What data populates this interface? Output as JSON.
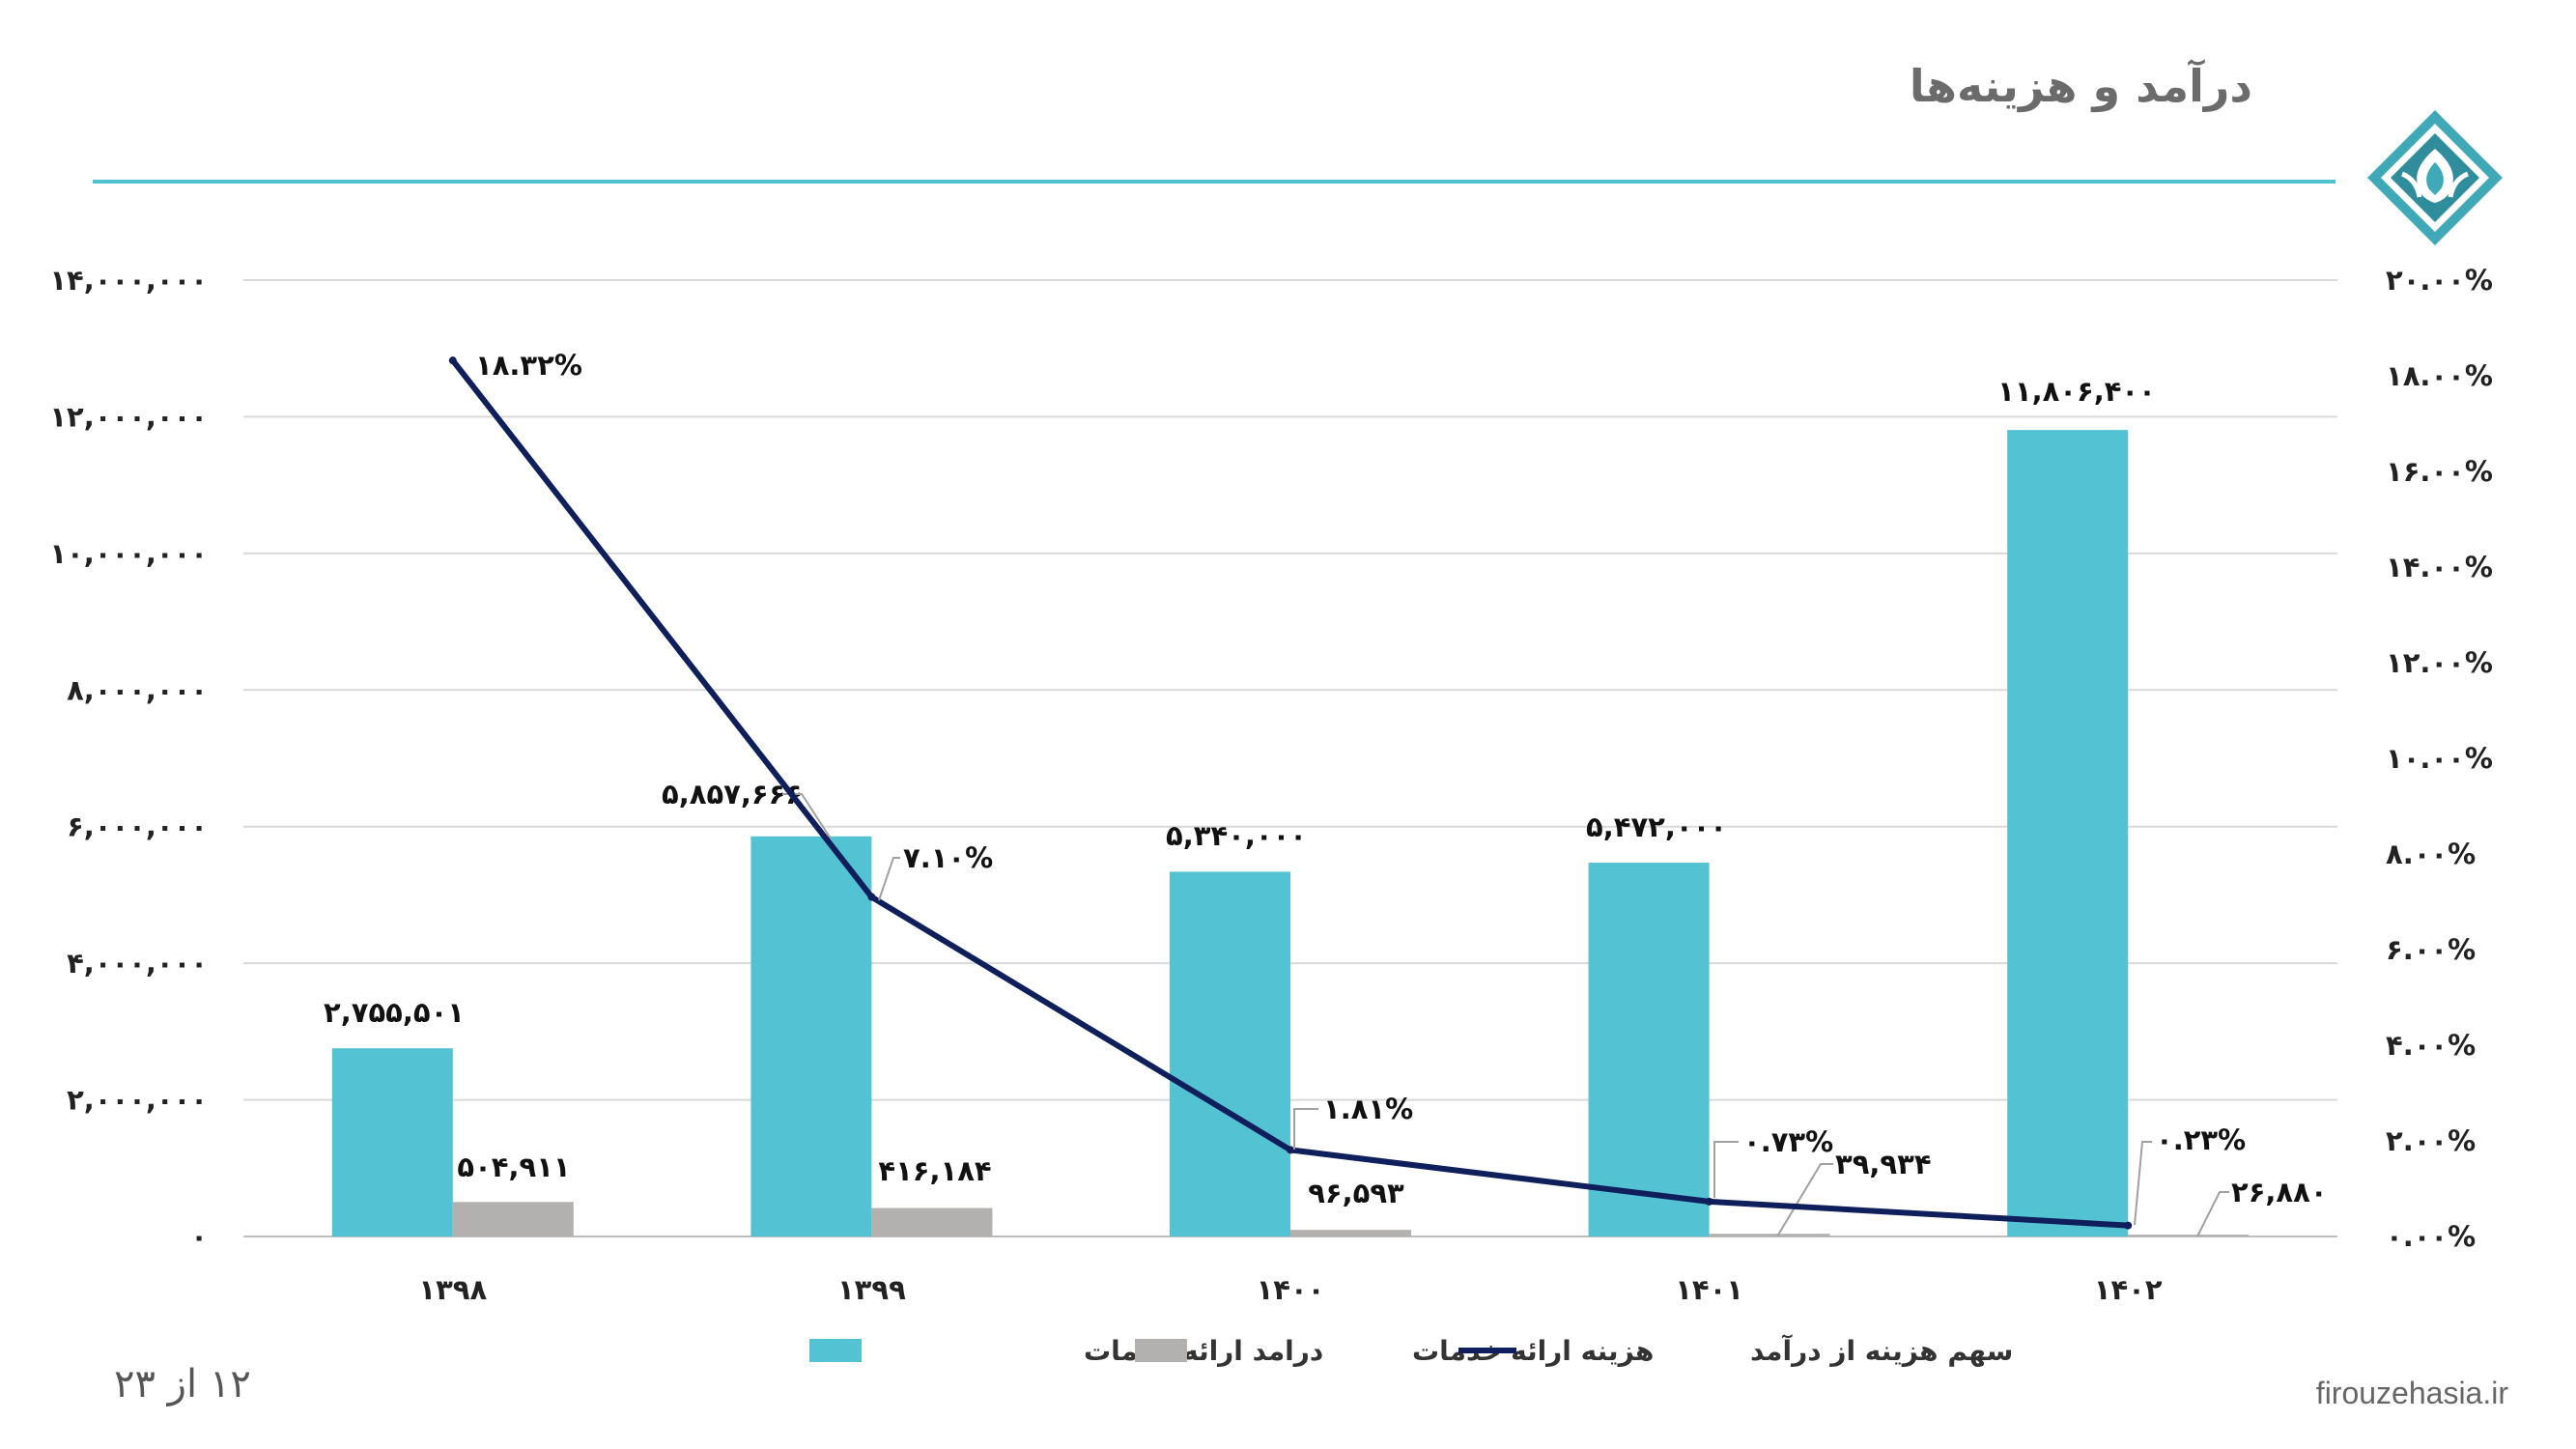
{
  "page": {
    "title": "درآمد و هزینه‌ها",
    "page_number": "۱۲ از ۲۳",
    "website": "firouzehasia.ir"
  },
  "colors": {
    "accent": "#4fc1d2",
    "income": "#53c3d4",
    "cost": "#b3b0b0",
    "ratio": "#0f1f5c",
    "grid": "#d9d9d9"
  },
  "chart_data": {
    "type": "bar",
    "categories": [
      "۱۳۹۸",
      "۱۳۹۹",
      "۱۴۰۰",
      "۱۴۰۱",
      "۱۴۰۲"
    ],
    "series": [
      {
        "name": "درامد ارائه خدمات",
        "type": "bar",
        "axis": "left",
        "values": [
          2755501,
          5857666,
          5340000,
          5472000,
          11806400
        ],
        "labels": [
          "۲,۷۵۵,۵۰۱",
          "۵,۸۵۷,۶۶۶",
          "۵,۳۴۰,۰۰۰",
          "۵,۴۷۲,۰۰۰",
          "۱۱,۸۰۶,۴۰۰"
        ]
      },
      {
        "name": "هزینه ارائه خدمات",
        "type": "bar",
        "axis": "left",
        "values": [
          504911,
          416184,
          96593,
          39934,
          26880
        ],
        "labels": [
          "۵۰۴,۹۱۱",
          "۴۱۶,۱۸۴",
          "۹۶,۵۹۳",
          "۳۹,۹۳۴",
          "۲۶,۸۸۰"
        ]
      },
      {
        "name": "سهم هزینه از درآمد",
        "type": "line",
        "axis": "right",
        "values": [
          18.32,
          7.1,
          1.81,
          0.73,
          0.23
        ],
        "labels": [
          "۱۸.۳۲%",
          "۷.۱۰%",
          "۱.۸۱%",
          "۰.۷۳%",
          "۰.۲۳%"
        ]
      }
    ],
    "y_left": {
      "ylim": [
        0,
        14000000
      ],
      "ticks": [
        0,
        2000000,
        4000000,
        6000000,
        8000000,
        10000000,
        12000000,
        14000000
      ],
      "tick_labels": [
        "۰",
        "۲,۰۰۰,۰۰۰",
        "۴,۰۰۰,۰۰۰",
        "۶,۰۰۰,۰۰۰",
        "۸,۰۰۰,۰۰۰",
        "۱۰,۰۰۰,۰۰۰",
        "۱۲,۰۰۰,۰۰۰",
        "۱۴,۰۰۰,۰۰۰"
      ]
    },
    "y_right": {
      "ylim": [
        0,
        20
      ],
      "ticks": [
        0,
        2,
        4,
        6,
        8,
        10,
        12,
        14,
        16,
        18,
        20
      ],
      "tick_labels": [
        "۰.۰۰%",
        "۲.۰۰%",
        "۴.۰۰%",
        "۶.۰۰%",
        "۸.۰۰%",
        "۱۰.۰۰%",
        "۱۲.۰۰%",
        "۱۴.۰۰%",
        "۱۶.۰۰%",
        "۱۸.۰۰%",
        "۲۰.۰۰%"
      ]
    },
    "grid": true,
    "legend_position": "bottom"
  }
}
